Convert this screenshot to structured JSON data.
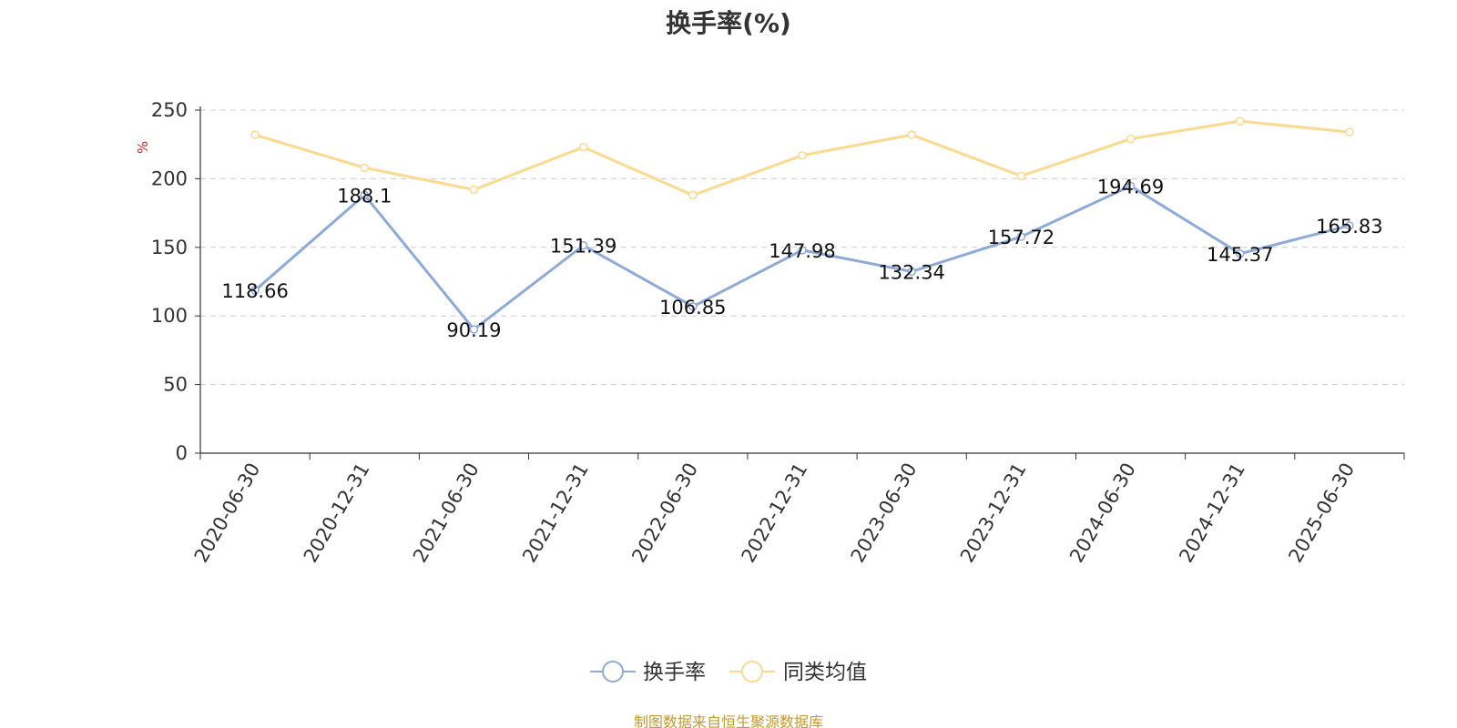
{
  "chart_data": {
    "type": "line",
    "title": "换手率(%)",
    "ylabel": "%",
    "xlabel": "",
    "ylim": [
      0,
      250
    ],
    "y_ticks": [
      0,
      50,
      100,
      150,
      200,
      250
    ],
    "grid": true,
    "legend_position": "bottom-center",
    "categories": [
      "2020-06-30",
      "2020-12-31",
      "2021-06-30",
      "2021-12-31",
      "2022-06-30",
      "2022-12-31",
      "2023-06-30",
      "2023-12-31",
      "2024-06-30",
      "2024-12-31",
      "2025-06-30"
    ],
    "series": [
      {
        "name": "换手率",
        "color": "#8eaad8",
        "values": [
          118.66,
          188.1,
          90.19,
          151.39,
          106.85,
          147.98,
          132.34,
          157.72,
          194.69,
          145.37,
          165.83
        ],
        "data_labels": [
          "118.66",
          "188.1",
          "90.19",
          "151.39",
          "106.85",
          "147.98",
          "132.34",
          "157.72",
          "194.69",
          "145.37",
          "165.83"
        ]
      },
      {
        "name": "同类均值",
        "color": "#fbd98f",
        "values": [
          232,
          208,
          192,
          223,
          188,
          217,
          232,
          202,
          229,
          242,
          234
        ]
      }
    ]
  },
  "footer": {
    "source": "制图数据来自恒生聚源数据库"
  }
}
